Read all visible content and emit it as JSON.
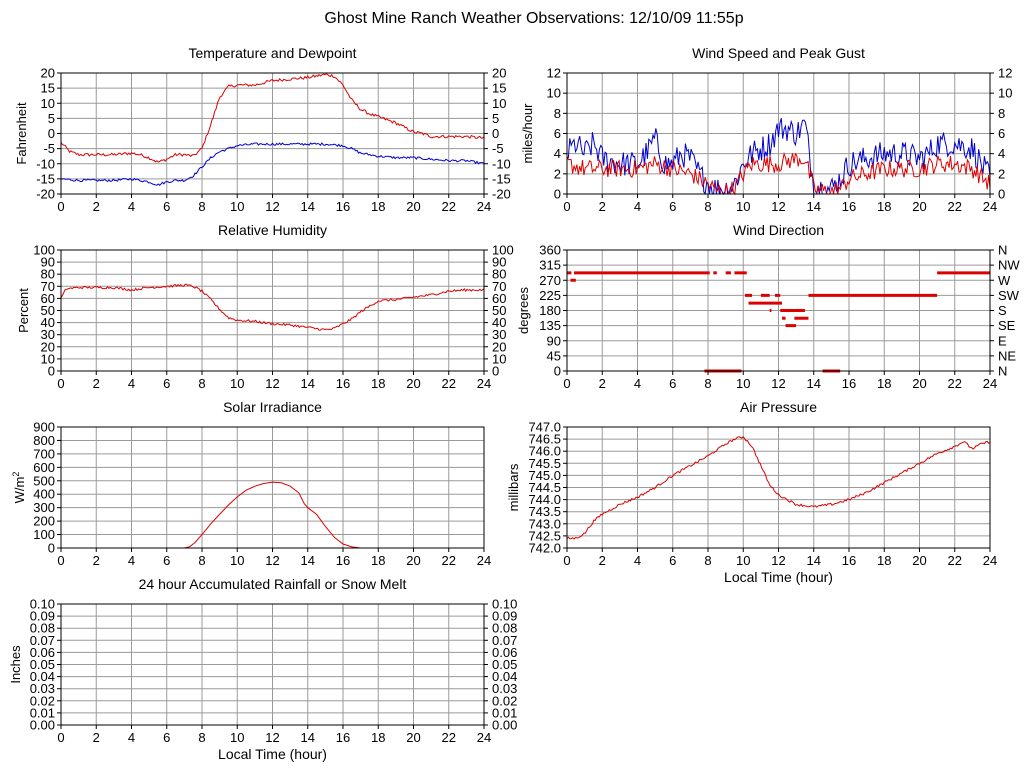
{
  "page_title": "Ghost Mine Ranch Weather Observations: 12/10/09 11:55p",
  "colors": {
    "red": "#dd0000",
    "blue": "#0000cc",
    "grid": "#9a9a9a"
  },
  "chart_data": [
    {
      "id": "temp",
      "type": "line",
      "title": "Temperature and Dewpoint",
      "xlabel": "",
      "ylabel": "Fahrenheit",
      "xlim": [
        0,
        24
      ],
      "ylim": [
        -20,
        20
      ],
      "xticks": [
        "0",
        "2",
        "4",
        "6",
        "8",
        "10",
        "12",
        "14",
        "16",
        "18",
        "20",
        "22",
        "24"
      ],
      "yticks": [
        "-20",
        "-15",
        "-10",
        "-5",
        "0",
        "5",
        "10",
        "15",
        "20"
      ],
      "right_yticks": [
        "-20",
        "-15",
        "-10",
        "-5",
        "0",
        "5",
        "10",
        "15",
        "20"
      ],
      "series": [
        {
          "color": "#dd0000",
          "noise": 0.5,
          "x": [
            0,
            0.5,
            1,
            2,
            3,
            4,
            4.5,
            5,
            5.5,
            6,
            6.5,
            7,
            7.5,
            8,
            8.5,
            9,
            9.5,
            10,
            10.5,
            11,
            12,
            13,
            14,
            14.5,
            15,
            15.5,
            16,
            16.5,
            17,
            17.5,
            18,
            19,
            20,
            20.5,
            21,
            22,
            23,
            24
          ],
          "y": [
            -3,
            -6,
            -7,
            -7,
            -7,
            -6.5,
            -7,
            -8,
            -9.5,
            -8.5,
            -7,
            -7,
            -7.5,
            -5,
            3,
            12,
            15.5,
            16,
            16,
            16,
            17.5,
            18,
            18.5,
            19,
            19.5,
            19,
            16,
            11,
            8,
            6.5,
            5.5,
            3.5,
            0.5,
            0,
            -1,
            -1,
            -1,
            -1.5
          ]
        },
        {
          "color": "#0000cc",
          "noise": 0.4,
          "x": [
            0,
            1,
            2,
            3,
            4,
            4.5,
            5,
            5.5,
            6,
            6.5,
            7,
            7.5,
            8,
            8.5,
            9,
            9.5,
            10,
            11,
            12,
            13,
            14,
            15,
            16,
            16.5,
            17,
            18,
            19,
            20,
            21,
            22,
            23,
            24
          ],
          "y": [
            -15,
            -15.5,
            -15.5,
            -15.5,
            -15,
            -15.5,
            -16,
            -17,
            -16,
            -15.5,
            -15.5,
            -14,
            -11,
            -8,
            -6,
            -5,
            -4,
            -3.5,
            -3.5,
            -3.5,
            -3.5,
            -3.5,
            -4,
            -5,
            -6.5,
            -7.5,
            -8,
            -8,
            -8.5,
            -9,
            -9,
            -10
          ]
        }
      ]
    },
    {
      "id": "wind",
      "type": "line",
      "title": "Wind Speed and Peak Gust",
      "xlabel": "",
      "ylabel": "miles/hour",
      "xlim": [
        0,
        24
      ],
      "ylim": [
        0,
        12
      ],
      "xticks": [
        "0",
        "2",
        "4",
        "6",
        "8",
        "10",
        "12",
        "14",
        "16",
        "18",
        "20",
        "22",
        "24"
      ],
      "yticks": [
        "0",
        "2",
        "4",
        "6",
        "8",
        "10",
        "12"
      ],
      "right_yticks": [
        "0",
        "2",
        "4",
        "6",
        "8",
        "10",
        "12"
      ],
      "series": [
        {
          "color": "#0000cc",
          "noise": 1.3,
          "x": [
            0,
            0.5,
            1,
            1.5,
            2,
            3,
            4,
            4.5,
            5,
            5.5,
            6,
            6.5,
            7,
            7.5,
            8,
            8.5,
            9,
            9.5,
            10,
            10.5,
            11,
            11.5,
            12,
            12.5,
            13,
            13.5,
            14,
            14.5,
            15,
            15.5,
            16,
            17,
            18,
            19,
            20,
            20.5,
            21,
            21.5,
            22,
            23,
            24
          ],
          "y": [
            4,
            5,
            4,
            5,
            3.5,
            3,
            3,
            4,
            5.5,
            3,
            3,
            4,
            3.5,
            2,
            1,
            0.5,
            0.5,
            1,
            3,
            4,
            4.5,
            5,
            6.5,
            6.5,
            6,
            7,
            1,
            0.5,
            0.5,
            1.5,
            3,
            3.5,
            4,
            4,
            3.5,
            4,
            5,
            5,
            5,
            4.5,
            1.5
          ]
        },
        {
          "color": "#dd0000",
          "noise": 0.9,
          "x": [
            0,
            1,
            2,
            3,
            4,
            5,
            6,
            7,
            7.5,
            8,
            8.5,
            9,
            9.5,
            10,
            10.5,
            11,
            12,
            13,
            13.5,
            14,
            14.5,
            15,
            15.5,
            16,
            17,
            18,
            19,
            20,
            21,
            22,
            23,
            24
          ],
          "y": [
            3,
            2.5,
            2.5,
            2.5,
            2.5,
            3,
            2.5,
            2,
            1.5,
            1,
            0.3,
            0.3,
            0.5,
            2,
            3,
            3,
            3,
            3.5,
            3.5,
            0.5,
            0.3,
            0.3,
            0.5,
            1.5,
            2,
            2.5,
            2.5,
            2.5,
            3,
            3,
            2.5,
            1
          ]
        }
      ]
    },
    {
      "id": "rh",
      "type": "line",
      "title": "Relative Humidity",
      "xlabel": "",
      "ylabel": "Percent",
      "xlim": [
        0,
        24
      ],
      "ylim": [
        0,
        100
      ],
      "xticks": [
        "0",
        "2",
        "4",
        "6",
        "8",
        "10",
        "12",
        "14",
        "16",
        "18",
        "20",
        "22",
        "24"
      ],
      "yticks": [
        "0",
        "10",
        "20",
        "30",
        "40",
        "50",
        "60",
        "70",
        "80",
        "90",
        "100"
      ],
      "right_yticks": [
        "0",
        "10",
        "20",
        "30",
        "40",
        "50",
        "60",
        "70",
        "80",
        "90",
        "100"
      ],
      "series": [
        {
          "color": "#dd0000",
          "noise": 1.0,
          "x": [
            0,
            0.3,
            1,
            2,
            3,
            3.5,
            4,
            5,
            6,
            7,
            7.5,
            8,
            8.5,
            9,
            9.5,
            10,
            11,
            12,
            13,
            14,
            15,
            15.5,
            16,
            16.5,
            17,
            18,
            19,
            20,
            21,
            22,
            23,
            24
          ],
          "y": [
            60,
            68,
            69,
            69,
            69,
            68,
            67,
            69,
            70,
            71,
            70,
            66,
            59,
            51,
            44,
            42,
            41,
            39,
            38,
            36,
            34,
            35,
            39,
            43,
            49,
            58,
            59,
            61,
            63,
            66,
            67,
            67
          ]
        }
      ]
    },
    {
      "id": "wdir",
      "type": "scatter",
      "title": "Wind Direction",
      "xlabel": "",
      "ylabel": "degrees",
      "xlim": [
        0,
        24
      ],
      "ylim": [
        0,
        360
      ],
      "xticks": [
        "0",
        "2",
        "4",
        "6",
        "8",
        "10",
        "12",
        "14",
        "16",
        "18",
        "20",
        "22",
        "24"
      ],
      "yticks": [
        "0",
        "45",
        "90",
        "135",
        "180",
        "225",
        "270",
        "315",
        "360"
      ],
      "right_yticks": [
        "N",
        "NE",
        "E",
        "SE",
        "S",
        "SW",
        "W",
        "NW",
        "N"
      ],
      "segments": [
        {
          "x0": 0,
          "x1": 0.25,
          "y": 292
        },
        {
          "x0": 0.2,
          "x1": 0.5,
          "y": 270
        },
        {
          "x0": 0.4,
          "x1": 8.1,
          "y": 292
        },
        {
          "x0": 7.8,
          "x1": 9.9,
          "y": 0
        },
        {
          "x0": 8.3,
          "x1": 8.5,
          "y": 292
        },
        {
          "x0": 9.0,
          "x1": 9.3,
          "y": 292
        },
        {
          "x0": 9.5,
          "x1": 10.2,
          "y": 292
        },
        {
          "x0": 10.1,
          "x1": 10.5,
          "y": 225
        },
        {
          "x0": 10.3,
          "x1": 12.2,
          "y": 202
        },
        {
          "x0": 11.0,
          "x1": 11.5,
          "y": 225
        },
        {
          "x0": 11.8,
          "x1": 12.1,
          "y": 225
        },
        {
          "x0": 11.5,
          "x1": 11.6,
          "y": 180
        },
        {
          "x0": 12.1,
          "x1": 13.5,
          "y": 180
        },
        {
          "x0": 12.4,
          "x1": 13.0,
          "y": 135
        },
        {
          "x0": 12.2,
          "x1": 12.4,
          "y": 157
        },
        {
          "x0": 12.9,
          "x1": 13.7,
          "y": 157
        },
        {
          "x0": 13.7,
          "x1": 21.0,
          "y": 225
        },
        {
          "x0": 14.5,
          "x1": 15.5,
          "y": 0
        },
        {
          "x0": 21.0,
          "x1": 24.0,
          "y": 292
        }
      ]
    },
    {
      "id": "solar",
      "type": "line",
      "title": "Solar Irradiance",
      "xlabel": "",
      "ylabel": "W/m",
      "ylabel_sup": "2",
      "xlim": [
        0,
        24
      ],
      "ylim": [
        0,
        900
      ],
      "xticks": [
        "0",
        "2",
        "4",
        "6",
        "8",
        "10",
        "12",
        "14",
        "16",
        "18",
        "20",
        "22",
        "24"
      ],
      "yticks": [
        "0",
        "100",
        "200",
        "300",
        "400",
        "500",
        "600",
        "700",
        "800",
        "900"
      ],
      "right_yticks": [],
      "series": [
        {
          "color": "#dd0000",
          "noise": 0,
          "x": [
            0,
            7,
            7.3,
            7.6,
            8,
            8.5,
            9,
            9.5,
            10,
            10.5,
            11,
            11.5,
            12,
            12.5,
            13,
            13.5,
            13.8,
            14,
            14.5,
            15,
            15.5,
            16,
            16.5,
            17,
            24
          ],
          "y": [
            0,
            0,
            10,
            40,
            100,
            180,
            250,
            320,
            380,
            430,
            460,
            480,
            490,
            485,
            460,
            410,
            330,
            300,
            250,
            160,
            80,
            30,
            8,
            0,
            0
          ]
        }
      ]
    },
    {
      "id": "pressure",
      "type": "line",
      "title": "Air Pressure",
      "xlabel": "Local Time (hour)",
      "ylabel": "millibars",
      "xlim": [
        0,
        24
      ],
      "ylim": [
        742.0,
        747.0
      ],
      "xticks": [
        "0",
        "2",
        "4",
        "6",
        "8",
        "10",
        "12",
        "14",
        "16",
        "18",
        "20",
        "22",
        "24"
      ],
      "yticks": [
        "742.0",
        "742.5",
        "743.0",
        "743.5",
        "744.0",
        "744.5",
        "745.0",
        "745.5",
        "746.0",
        "746.5",
        "747.0"
      ],
      "right_yticks": [],
      "series": [
        {
          "color": "#dd0000",
          "noise": 0.05,
          "x": [
            0,
            0.5,
            1,
            1.5,
            2,
            3,
            4,
            5,
            6,
            7,
            8,
            9,
            9.5,
            10,
            10.5,
            11,
            11.5,
            12,
            13,
            14,
            15,
            16,
            17,
            18,
            19,
            20,
            21,
            22,
            22.5,
            23,
            23.5,
            24
          ],
          "y": [
            742.4,
            742.4,
            742.6,
            743.1,
            743.4,
            743.8,
            744.1,
            744.5,
            745.0,
            745.4,
            745.8,
            746.3,
            746.5,
            746.6,
            746.2,
            745.4,
            744.6,
            744.2,
            743.8,
            743.7,
            743.8,
            744.0,
            744.3,
            744.7,
            745.1,
            745.5,
            745.9,
            746.2,
            746.4,
            746.1,
            746.3,
            746.4
          ]
        }
      ]
    },
    {
      "id": "rain",
      "type": "line",
      "title": "24 hour Accumulated Rainfall or Snow Melt",
      "xlabel": "Local Time (hour)",
      "ylabel": "Inches",
      "xlim": [
        0,
        24
      ],
      "ylim": [
        0,
        0.1
      ],
      "xticks": [
        "0",
        "2",
        "4",
        "6",
        "8",
        "10",
        "12",
        "14",
        "16",
        "18",
        "20",
        "22",
        "24"
      ],
      "yticks": [
        "0.00",
        "0.01",
        "0.02",
        "0.03",
        "0.04",
        "0.05",
        "0.06",
        "0.07",
        "0.08",
        "0.09",
        "0.10"
      ],
      "right_yticks": [
        "0.00",
        "0.01",
        "0.02",
        "0.03",
        "0.04",
        "0.05",
        "0.06",
        "0.07",
        "0.08",
        "0.09",
        "0.10"
      ],
      "series": [
        {
          "color": "#dd0000",
          "noise": 0,
          "x": [
            0,
            24
          ],
          "y": [
            0,
            0
          ]
        }
      ]
    }
  ]
}
